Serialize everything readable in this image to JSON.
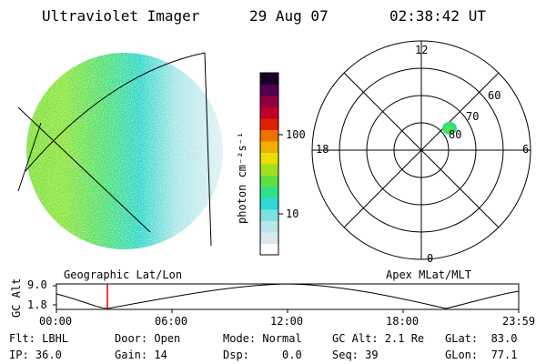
{
  "header": {
    "instrument": "Ultraviolet Imager",
    "date": "29 Aug 07",
    "time": "02:38:42 UT"
  },
  "colorbar": {
    "unit_label": "photon cm⁻²s⁻¹",
    "ticks": [
      "100",
      "10"
    ],
    "colors": [
      "#ffffff",
      "#d8eaf0",
      "#b8e6ea",
      "#7fe0e0",
      "#30d8d8",
      "#2ee08c",
      "#5ee040",
      "#a0e020",
      "#e8e000",
      "#f0b000",
      "#f07000",
      "#e02000",
      "#c0002a",
      "#900040",
      "#500050",
      "#180028"
    ]
  },
  "polar": {
    "mlt_labels": [
      "12",
      "18",
      "6",
      "0"
    ],
    "lat_labels": [
      "60",
      "70",
      "80"
    ]
  },
  "timeline": {
    "y_label": "GC Alt",
    "y_ticks": [
      "9.0",
      "1.8"
    ],
    "left_title": "Geographic Lat/Lon",
    "right_title": "Apex MLat/MLT",
    "x_ticks": [
      "00:00",
      "06:00",
      "12:00",
      "18:00",
      "23:59"
    ],
    "marker_time_hours": 2.645
  },
  "footer": {
    "flt": "Flt: LBHL",
    "ip": "IP: 36.0",
    "door": "Door: Open",
    "gain": "Gain: 14",
    "mode": "Mode: Normal",
    "dsp": "Dsp:     0.0",
    "gcalt": "GC Alt: 2.1 Re",
    "seq": "Seq: 39",
    "glat": "GLat:  83.0",
    "glon": "GLon:  77.1"
  }
}
